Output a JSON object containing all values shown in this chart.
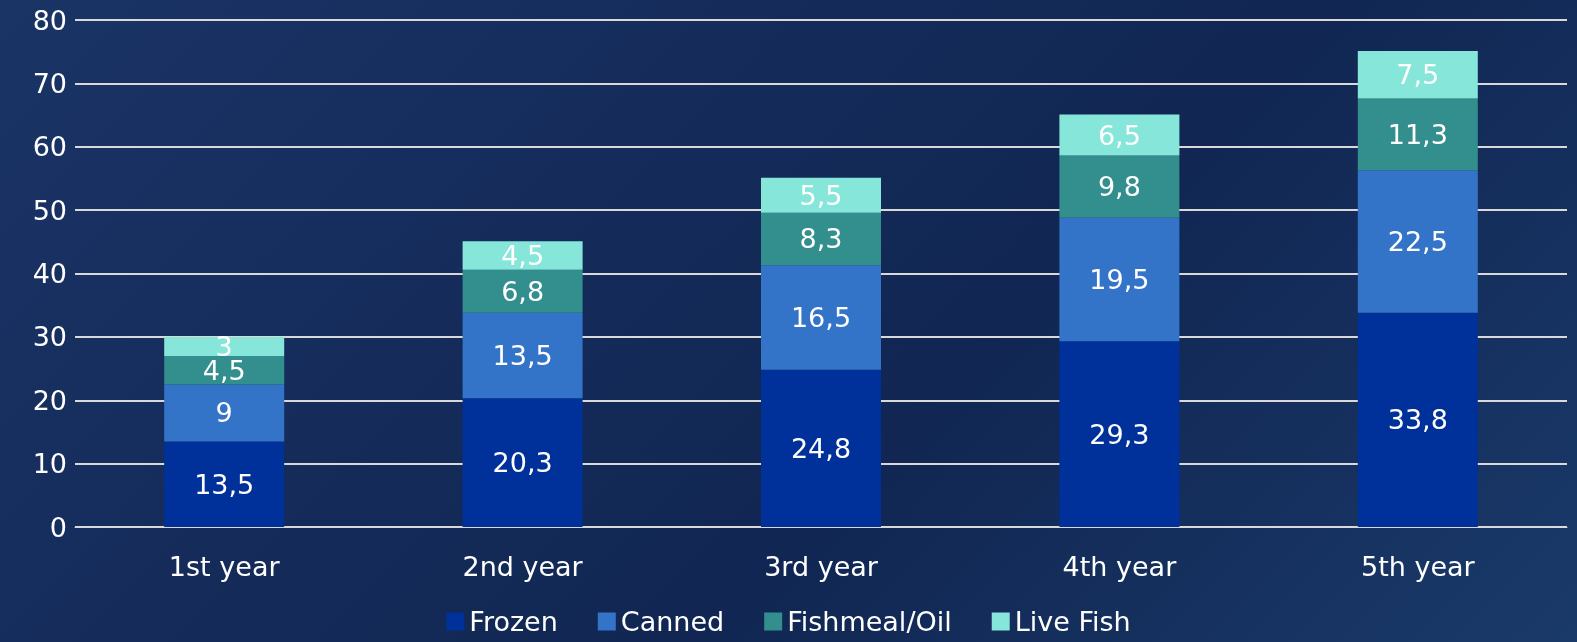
{
  "chart_data": {
    "type": "bar",
    "stacked": true,
    "categories": [
      "1st year",
      "2nd year",
      "3rd year",
      "4th year",
      "5th year"
    ],
    "series": [
      {
        "name": "Frozen",
        "color": "#00309a",
        "values": [
          13.5,
          20.3,
          24.8,
          29.3,
          33.8
        ],
        "value_labels": [
          "13,5",
          "20,3",
          "24,8",
          "29,3",
          "33,8"
        ]
      },
      {
        "name": "Canned",
        "color": "#3373c8",
        "values": [
          9,
          13.5,
          16.5,
          19.5,
          22.5
        ],
        "value_labels": [
          "9",
          "13,5",
          "16,5",
          "19,5",
          "22,5"
        ]
      },
      {
        "name": "Fishmeal/Oil",
        "color": "#338e8e",
        "values": [
          4.5,
          6.8,
          8.3,
          9.8,
          11.3
        ],
        "value_labels": [
          "4,5",
          "6,8",
          "8,3",
          "9,8",
          "11,3"
        ]
      },
      {
        "name": "Live Fish",
        "color": "#86e6da",
        "values": [
          3,
          4.5,
          5.5,
          6.5,
          7.5
        ],
        "value_labels": [
          "3",
          "4,5",
          "5,5",
          "6,5",
          "7,5"
        ]
      }
    ],
    "ylim": [
      0,
      80
    ],
    "yticks": [
      0,
      10,
      20,
      30,
      40,
      50,
      60,
      70,
      80
    ],
    "grid": "y",
    "legend": "bottom"
  }
}
